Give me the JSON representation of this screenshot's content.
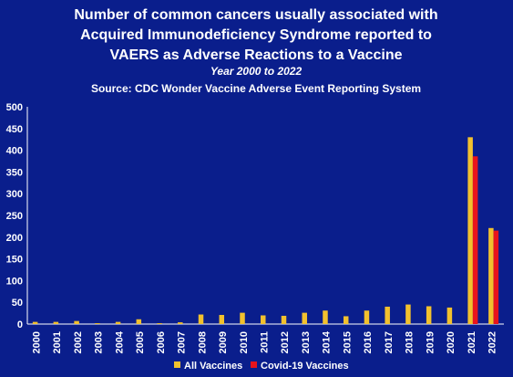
{
  "chart_data": {
    "type": "bar",
    "title_lines": [
      "Number of common cancers usually associated with",
      "Acquired Immunodeficiency Syndrome reported to",
      "VAERS as Adverse Reactions to a Vaccine"
    ],
    "subtitle": "Year 2000 to 2022",
    "source": "Source:  CDC Wonder Vaccine Adverse Event Reporting System",
    "categories": [
      "2000",
      "2001",
      "2002",
      "2003",
      "2004",
      "2005",
      "2006",
      "2007",
      "2008",
      "2009",
      "2010",
      "2011",
      "2012",
      "2013",
      "2014",
      "2015",
      "2016",
      "2017",
      "2018",
      "2019",
      "2020",
      "2021",
      "2022"
    ],
    "series": [
      {
        "name": "All Vaccines",
        "color": "#f2c12e",
        "values": [
          5,
          5,
          7,
          2,
          5,
          11,
          2,
          4,
          22,
          21,
          26,
          20,
          19,
          26,
          31,
          18,
          31,
          40,
          45,
          41,
          38,
          430,
          221
        ]
      },
      {
        "name": "Covid-19 Vaccines",
        "color": "#e8141c",
        "values": [
          null,
          null,
          null,
          null,
          null,
          null,
          null,
          null,
          null,
          null,
          null,
          null,
          null,
          null,
          null,
          null,
          null,
          null,
          null,
          null,
          null,
          386,
          215
        ]
      }
    ],
    "ylim": [
      0,
      500
    ],
    "yticks": [
      0,
      50,
      100,
      150,
      200,
      250,
      300,
      350,
      400,
      450,
      500
    ],
    "grid": false,
    "legend_position": "bottom-center"
  },
  "colors": {
    "background": "#0a1e8c",
    "axis": "#ffffff"
  }
}
